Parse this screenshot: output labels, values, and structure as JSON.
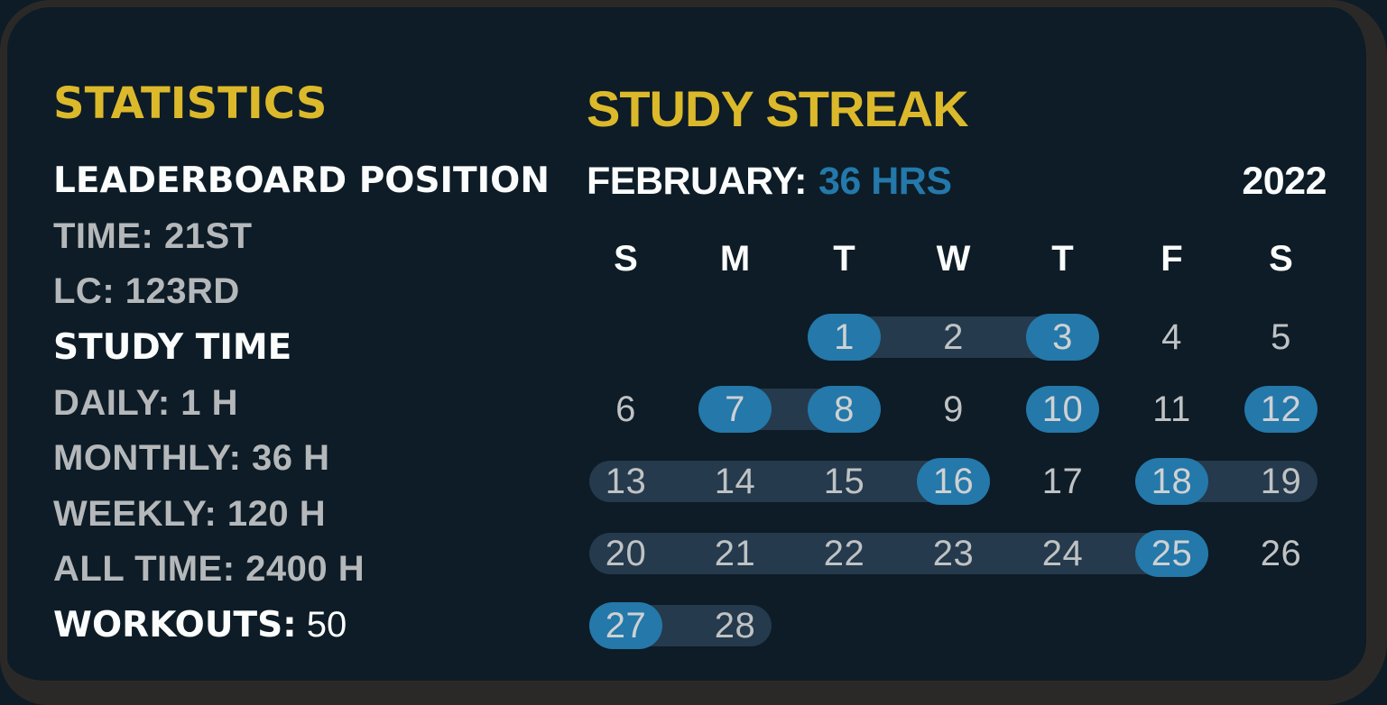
{
  "colors": {
    "accent_yellow": "#dcb92b",
    "accent_blue": "#2478aa",
    "streak_range_bg": "#253a4c",
    "card_bg": "#0d1c26",
    "frame_bg": "#2b2927",
    "text_primary": "#fbfcfc",
    "text_muted": "#b5b8ba",
    "day_number": "#bfc2c4",
    "day_number_highlight": "#ced1d2"
  },
  "statistics": {
    "title": "STATISTICS",
    "leaderboard_header": "LEADERBOARD POSITION",
    "time_position": "21ST",
    "lc_position": "123RD",
    "study_time_header": "STUDY TIME",
    "daily_hours": "1 H",
    "monthly_hours": "36 H",
    "weekly_hours": "120 H",
    "all_time_hours": "2400 H",
    "workouts_count": "50",
    "lines": [
      {
        "segments": [
          {
            "text": "LEADERBOARD POSITION",
            "style": "bold-white"
          }
        ]
      },
      {
        "segments": [
          {
            "text": "TIME: 21ST",
            "style": "muted"
          }
        ]
      },
      {
        "segments": [
          {
            "text": "LC: 123RD",
            "style": "muted"
          }
        ]
      },
      {
        "segments": [
          {
            "text": "STUDY TIME",
            "style": "bold-white"
          }
        ]
      },
      {
        "segments": [
          {
            "text": "DAILY: 1 H",
            "style": "muted"
          }
        ]
      },
      {
        "segments": [
          {
            "text": "MONTHLY: 36 H",
            "style": "muted"
          }
        ]
      },
      {
        "segments": [
          {
            "text": "WEEKLY: 120 H",
            "style": "muted"
          }
        ]
      },
      {
        "segments": [
          {
            "text": "ALL TIME: 2400 H",
            "style": "muted"
          }
        ]
      },
      {
        "segments": [
          {
            "text": "WORKOUTS:",
            "style": "bold-white"
          },
          {
            "text": "50",
            "style": "plain-white"
          }
        ]
      }
    ]
  },
  "streak": {
    "title": "STUDY STREAK",
    "month_label": "FEBRUARY:",
    "month_hours": "36 HRS",
    "year": "2022",
    "day_headers": [
      "S",
      "M",
      "T",
      "W",
      "T",
      "F",
      "S"
    ],
    "highlighted_days": [
      1,
      3,
      7,
      8,
      10,
      12,
      16,
      18,
      25,
      27
    ],
    "weeks": [
      {
        "days": [
          {
            "d": null
          },
          {
            "d": null
          },
          {
            "d": 1,
            "hl": true
          },
          {
            "d": 2
          },
          {
            "d": 3,
            "hl": true
          },
          {
            "d": 4
          },
          {
            "d": 5
          }
        ],
        "ranges": [
          {
            "start": 2,
            "end": 4
          }
        ]
      },
      {
        "days": [
          {
            "d": 6
          },
          {
            "d": 7,
            "hl": true
          },
          {
            "d": 8,
            "hl": true
          },
          {
            "d": 9
          },
          {
            "d": 10,
            "hl": true
          },
          {
            "d": 11
          },
          {
            "d": 12,
            "hl": true
          }
        ],
        "ranges": [
          {
            "start": 1,
            "end": 2
          }
        ]
      },
      {
        "days": [
          {
            "d": 13
          },
          {
            "d": 14
          },
          {
            "d": 15
          },
          {
            "d": 16,
            "hl": true
          },
          {
            "d": 17
          },
          {
            "d": 18,
            "hl": true
          },
          {
            "d": 19
          }
        ],
        "ranges": [
          {
            "start": 0,
            "end": 3
          },
          {
            "start": 5,
            "end": 6
          }
        ]
      },
      {
        "days": [
          {
            "d": 20
          },
          {
            "d": 21
          },
          {
            "d": 22
          },
          {
            "d": 23
          },
          {
            "d": 24
          },
          {
            "d": 25,
            "hl": true
          },
          {
            "d": 26
          }
        ],
        "ranges": [
          {
            "start": 0,
            "end": 5
          }
        ]
      },
      {
        "days": [
          {
            "d": 27,
            "hl": true
          },
          {
            "d": 28
          },
          {
            "d": null
          },
          {
            "d": null
          },
          {
            "d": null
          },
          {
            "d": null
          },
          {
            "d": null
          }
        ],
        "ranges": [
          {
            "start": 0,
            "end": 1
          }
        ]
      }
    ]
  }
}
